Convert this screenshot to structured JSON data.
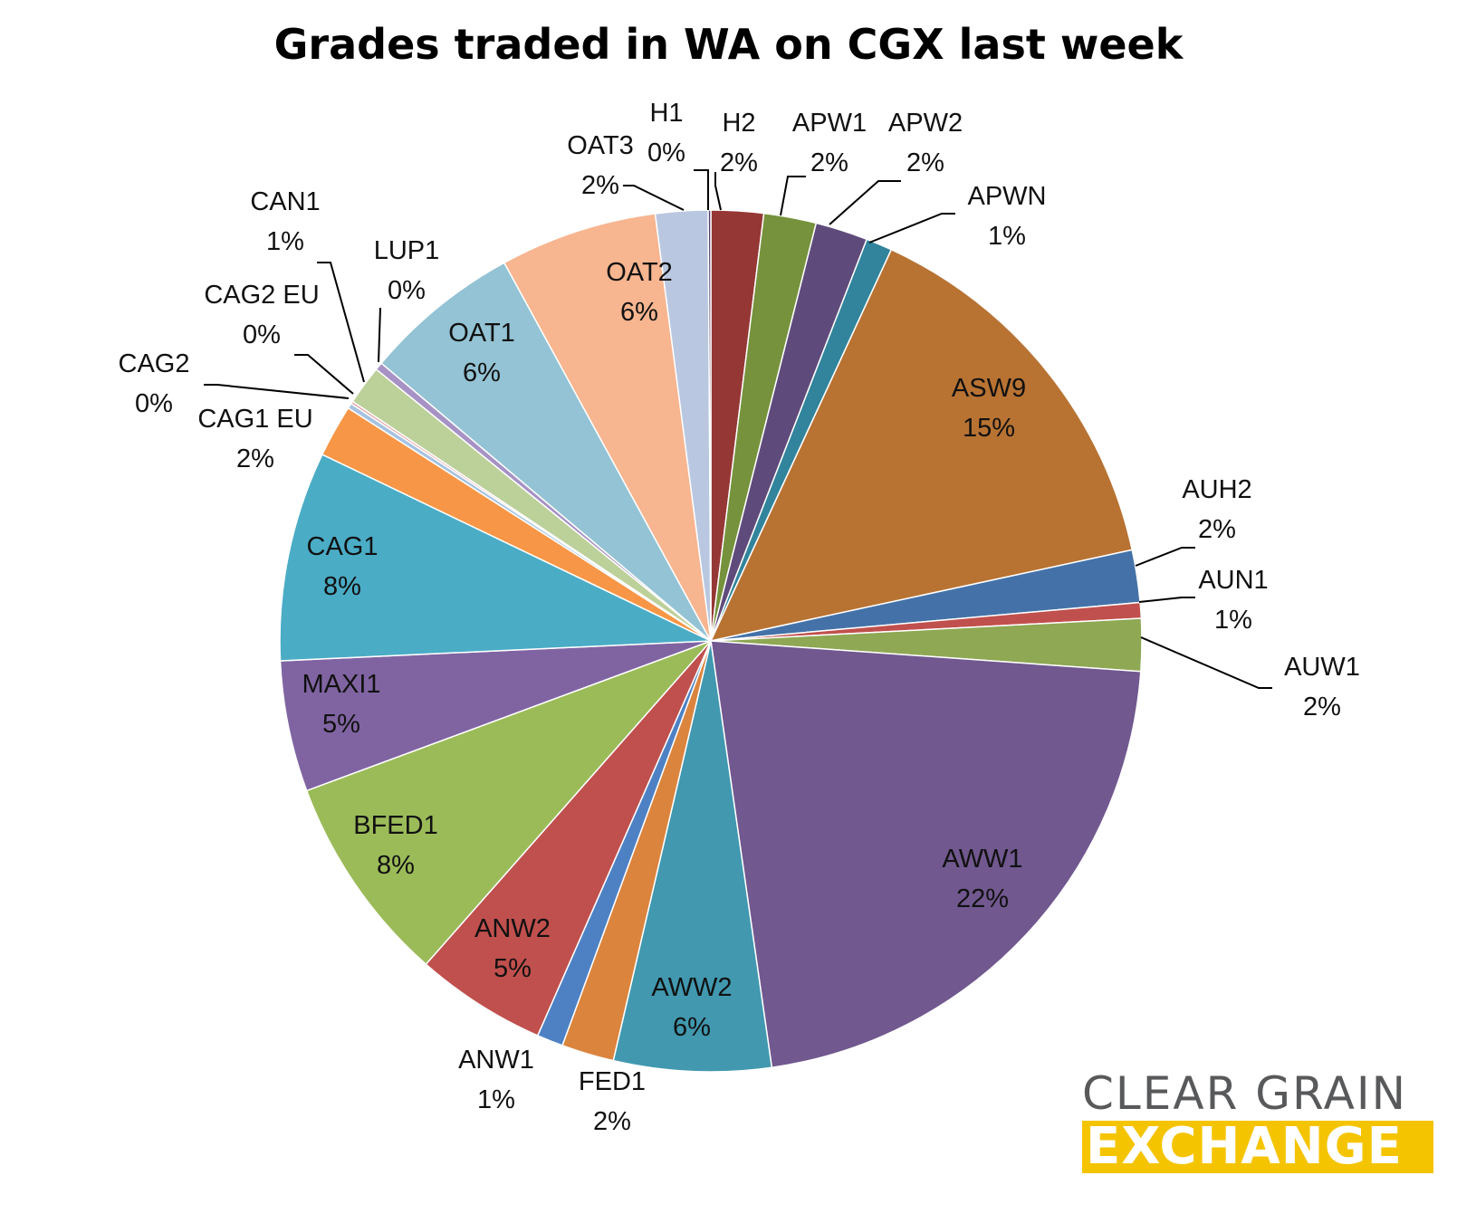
{
  "chart_data": {
    "type": "pie",
    "title": "Grades traded in WA on CGX last week",
    "slices": [
      {
        "label": "H2",
        "value": 2,
        "pct_label": "2%",
        "color": "#953735"
      },
      {
        "label": "APW1",
        "value": 2,
        "pct_label": "2%",
        "color": "#76923c"
      },
      {
        "label": "APW2",
        "value": 2,
        "pct_label": "2%",
        "color": "#5f4b7b"
      },
      {
        "label": "APWN",
        "value": 1,
        "pct_label": "1%",
        "color": "#31849b"
      },
      {
        "label": "ASW9",
        "value": 15,
        "pct_label": "15%",
        "color": "#b87333"
      },
      {
        "label": "AUH2",
        "value": 2,
        "pct_label": "2%",
        "color": "#4472a8"
      },
      {
        "label": "AUN1",
        "value": 0.6,
        "pct_label": "1%",
        "color": "#c0504d"
      },
      {
        "label": "AUW1",
        "value": 2,
        "pct_label": "2%",
        "color": "#8ea854"
      },
      {
        "label": "AWW1",
        "value": 22,
        "pct_label": "22%",
        "color": "#71588f"
      },
      {
        "label": "AWW2",
        "value": 6,
        "pct_label": "6%",
        "color": "#4198af"
      },
      {
        "label": "FED1",
        "value": 2,
        "pct_label": "2%",
        "color": "#db843d"
      },
      {
        "label": "ANW1",
        "value": 1,
        "pct_label": "1%",
        "color": "#4e81c4"
      },
      {
        "label": "ANW2",
        "value": 5,
        "pct_label": "5%",
        "color": "#c0504d"
      },
      {
        "label": "BFED1",
        "value": 8,
        "pct_label": "8%",
        "color": "#9bbb59"
      },
      {
        "label": "MAXI1",
        "value": 5,
        "pct_label": "5%",
        "color": "#8064a2"
      },
      {
        "label": "CAG1",
        "value": 8,
        "pct_label": "8%",
        "color": "#4bacc6"
      },
      {
        "label": "CAG1 EU",
        "value": 2,
        "pct_label": "2%",
        "color": "#f79646"
      },
      {
        "label": "CAG2",
        "value": 0.2,
        "pct_label": "0%",
        "color": "#a6c2e0"
      },
      {
        "label": "CAG2 EU",
        "value": 0.1,
        "pct_label": "0%",
        "color": "#e6a1a0"
      },
      {
        "label": "CAN1",
        "value": 1.5,
        "pct_label": "1%",
        "color": "#bcd09a"
      },
      {
        "label": "LUP1",
        "value": 0.3,
        "pct_label": "0%",
        "color": "#a692c4"
      },
      {
        "label": "OAT1",
        "value": 6,
        "pct_label": "6%",
        "color": "#93c3d4"
      },
      {
        "label": "OAT2",
        "value": 6,
        "pct_label": "6%",
        "color": "#f7b590"
      },
      {
        "label": "OAT3",
        "value": 2,
        "pct_label": "2%",
        "color": "#b9c7e0"
      },
      {
        "label": "H1",
        "value": 0.1,
        "pct_label": "0%",
        "color": "#4f3a6e"
      }
    ]
  },
  "logo": {
    "line1": "CLEAR GRAIN",
    "line2": "EXCHANGE",
    "line1_color": "#58595b",
    "line2_bg": "#f5c400"
  }
}
